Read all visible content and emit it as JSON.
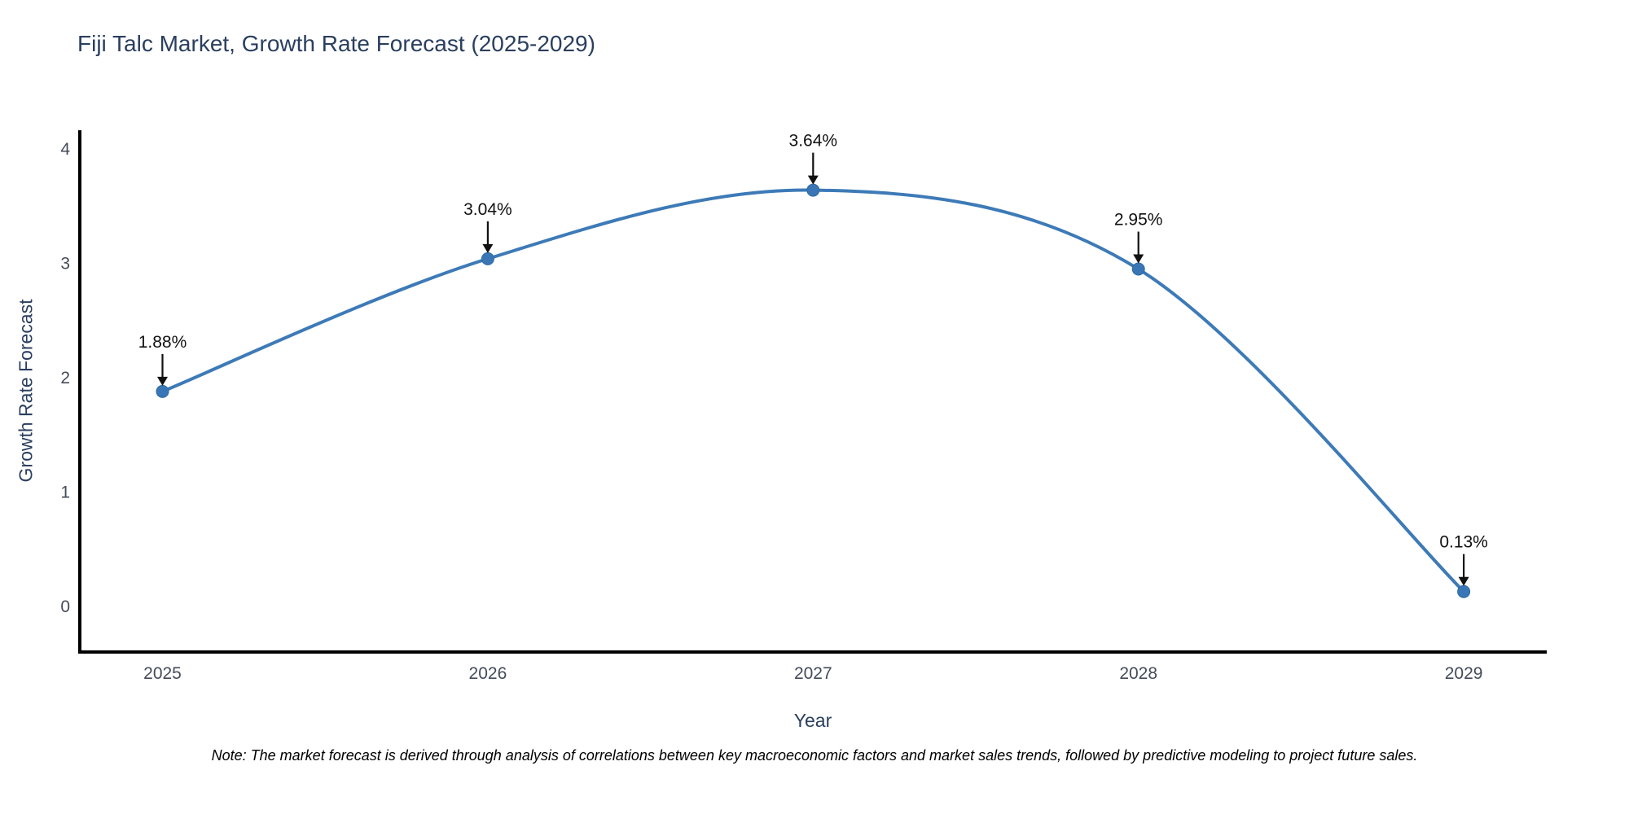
{
  "chart_data": {
    "type": "line",
    "title": "Fiji Talc Market, Growth Rate Forecast (2025-2029)",
    "xlabel": "Year",
    "ylabel": "Growth Rate Forecast",
    "categories": [
      "2025",
      "2026",
      "2027",
      "2028",
      "2029"
    ],
    "series": [
      {
        "name": "Growth Rate Forecast",
        "values": [
          1.88,
          3.04,
          3.64,
          2.95,
          0.13
        ]
      }
    ],
    "point_labels": [
      "1.88%",
      "3.04%",
      "3.64%",
      "2.95%",
      "0.13%"
    ],
    "ylim": [
      0,
      4.3
    ],
    "yticks": [
      0,
      1,
      2,
      3,
      4
    ],
    "line_shape": "spline",
    "grid": false,
    "legend": "none",
    "annotation_arrow": "down",
    "colors": {
      "line": "#3d7ab7",
      "marker_fill": "#3a76b5",
      "marker_edge": "#2d6ba3",
      "axis_line": "#000000",
      "title_text": "#2a3f5f",
      "tick_text": "#444b5a",
      "annotation": "#111111"
    }
  },
  "footer": {
    "note": "Note: The market forecast is derived through analysis of correlations between key macroeconomic factors and market sales trends, followed by predictive modeling to project future sales."
  }
}
